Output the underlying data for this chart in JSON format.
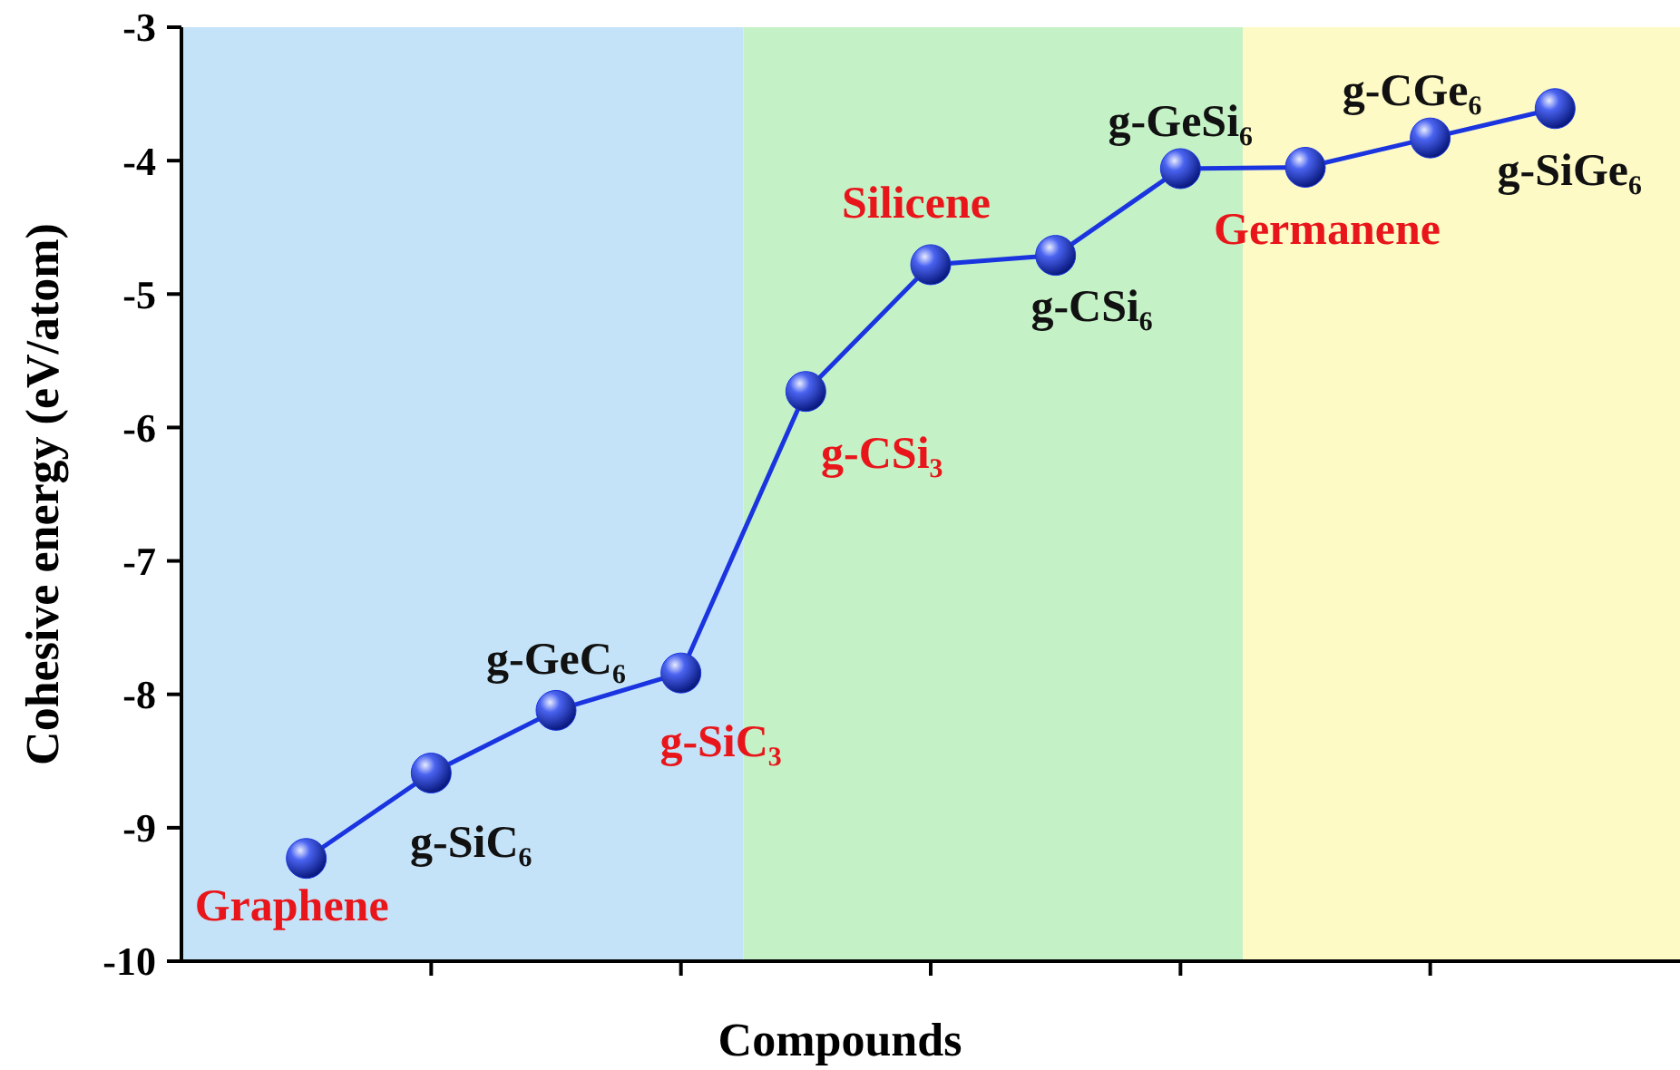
{
  "chart_data": {
    "type": "line",
    "xlabel": "Compounds",
    "ylabel": "Cohesive energy (eV/atom)",
    "categories": [
      null,
      null,
      null,
      null,
      null,
      null,
      null,
      null,
      null,
      null,
      null
    ],
    "series": [
      {
        "color": "#1a35e0",
        "values": [
          -9.23,
          -8.59,
          -8.12,
          -7.84,
          -5.73,
          -4.78,
          -4.71,
          -4.06,
          -4.05,
          -3.83,
          -3.61
        ]
      }
    ],
    "ylim": [
      -10,
      -3
    ],
    "yticks": [
      -10,
      -9,
      -8,
      -7,
      -6,
      -5,
      -4,
      -3
    ],
    "marker": "circle",
    "annotations": [
      "Graphene",
      "g-SiC₆",
      "g-GeC₆",
      "g-SiC₃",
      "g-CSi₃",
      "Silicene",
      "g-CSi₆",
      "g-GeSi₆",
      "Germanene",
      "g-CGe₆",
      "g-SiGe₆"
    ]
  }
}
